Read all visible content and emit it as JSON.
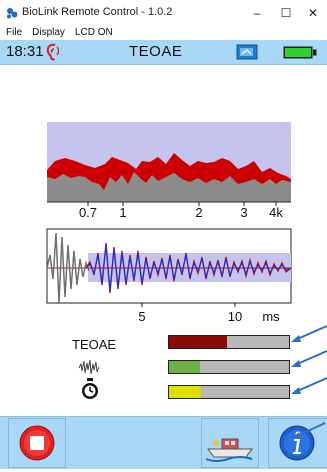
{
  "window": {
    "title": "BioLink Remote Control  -  1.0.2",
    "minimize": "–",
    "maximize": "☐",
    "close": "✕"
  },
  "menu": [
    "File",
    "Display",
    "LCD ON"
  ],
  "status": {
    "time": "18:31",
    "mode": "TEOAE"
  },
  "spectrum_axis": [
    "0.7",
    "1",
    "2",
    "3",
    "4k"
  ],
  "waveform_axis": [
    "5",
    "10",
    "ms"
  ],
  "indicators": [
    {
      "label": "TEOAE",
      "level": 0.48,
      "color": "#8a0a0a"
    },
    {
      "label": "",
      "level": 0.26,
      "color": "#6fb04a"
    },
    {
      "label": "",
      "level": 0.27,
      "color": "#e0e000"
    }
  ],
  "colors": {
    "accent": "#a8d8f5",
    "spectrum_bg": "#c4c4ee",
    "signal": "#cc0000",
    "noise": "#8c8c8c"
  },
  "icons": {
    "app": "app-icon",
    "ear": "ear-icon",
    "screen": "screen-icon",
    "battery": "battery-icon",
    "noise": "noise-waveform-icon",
    "timer": "stopwatch-icon",
    "stop": "stop-icon",
    "boat": "boat-icon",
    "info": "info-icon"
  }
}
